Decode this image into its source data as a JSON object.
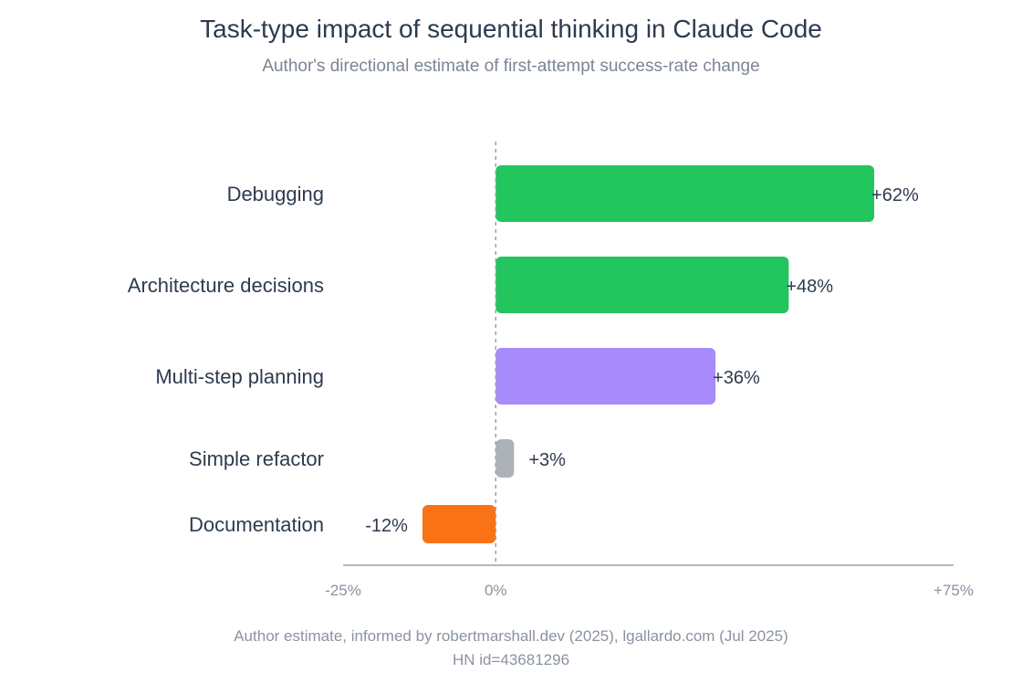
{
  "chart_data": {
    "type": "bar",
    "orientation": "horizontal",
    "title": "Task-type impact of sequential thinking in Claude Code",
    "subtitle": "Author's directional estimate of first-attempt success-rate change",
    "categories": [
      "Debugging",
      "Architecture decisions",
      "Multi-step planning",
      "Simple refactor",
      "Documentation"
    ],
    "values": [
      62,
      48,
      36,
      3,
      -12
    ],
    "value_labels": [
      "+62%",
      "+48%",
      "+36%",
      "+3%",
      "-12%"
    ],
    "colors": [
      "#22c55e",
      "#22c55e",
      "#a78bfa",
      "#adb2ba",
      "#f97316"
    ],
    "xlim": [
      -25,
      75
    ],
    "x_ticks": [
      -25,
      0,
      75
    ],
    "x_tick_labels": [
      "-25%",
      "0%",
      "+75%"
    ],
    "zero_line": "dashed",
    "grid": false,
    "legend": "none"
  },
  "footer": {
    "line1": "Author estimate, informed by robertmarshall.dev (2025), lgallardo.com (Jul 2025)",
    "line2": "HN id=43681296"
  }
}
